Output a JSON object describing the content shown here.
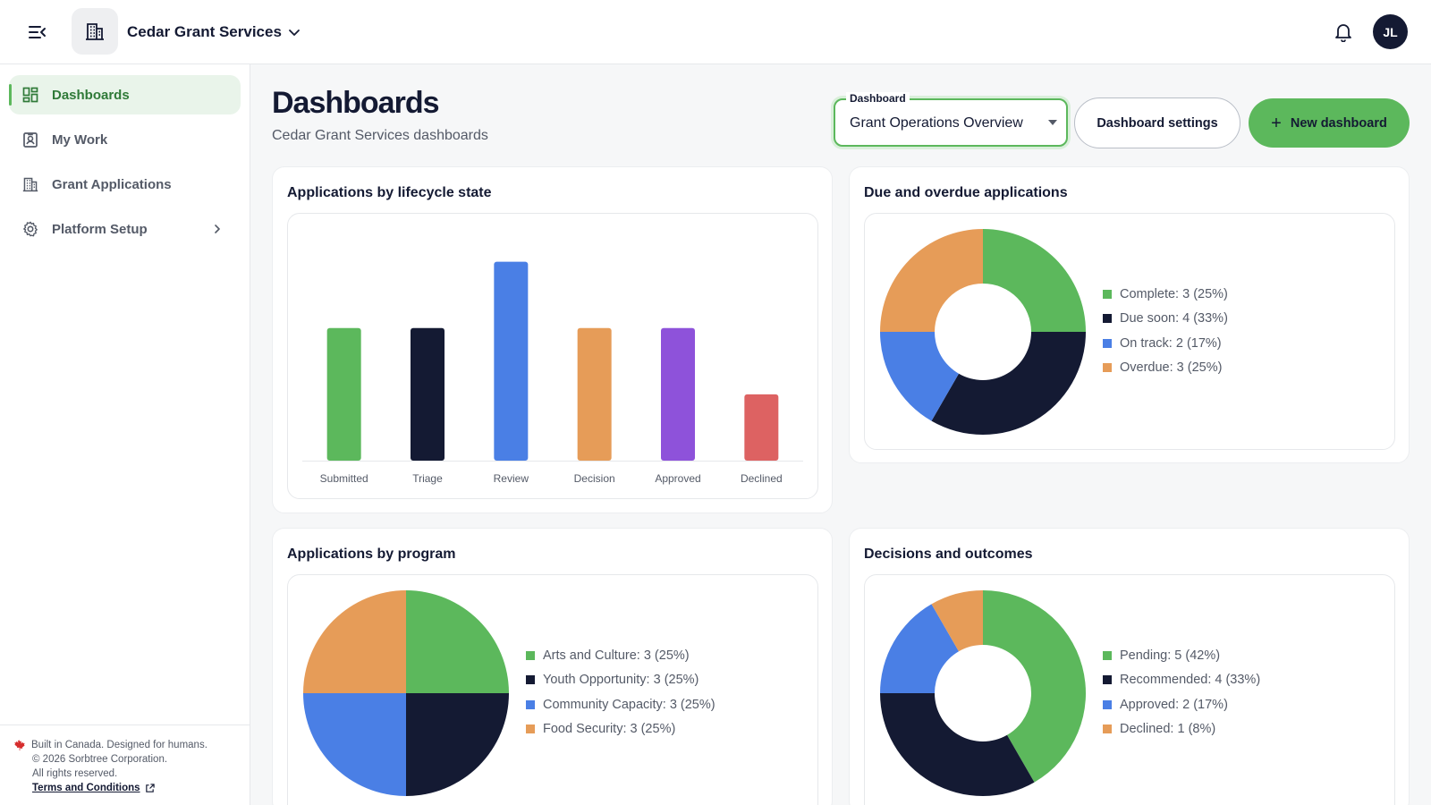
{
  "app": {
    "org_name": "Cedar Grant Services",
    "user_initials": "JL"
  },
  "sidebar": {
    "items": [
      {
        "label": "Dashboards",
        "icon": "dashboard-grid-icon",
        "active": true
      },
      {
        "label": "My Work",
        "icon": "id-badge-icon",
        "active": false
      },
      {
        "label": "Grant Applications",
        "icon": "building-icon",
        "active": false
      },
      {
        "label": "Platform Setup",
        "icon": "gear-icon",
        "active": false,
        "expandable": true
      }
    ],
    "footer": {
      "line1": "Built in Canada. Designed for humans.",
      "line2": "© 2026 Sorbtree Corporation.",
      "line3": "All rights reserved.",
      "terms": "Terms and Conditions"
    }
  },
  "page": {
    "title": "Dashboards",
    "subtitle": "Cedar Grant Services dashboards",
    "select_label": "Dashboard",
    "select_value": "Grant Operations Overview",
    "settings_button": "Dashboard settings",
    "new_button": "New dashboard"
  },
  "colors": {
    "green": "#5cb85c",
    "navy": "#141a33",
    "blue": "#4a7fe5",
    "orange": "#e69c58",
    "purple": "#8e52da",
    "red": "#dd6262"
  },
  "cards": {
    "lifecycle": {
      "title": "Applications by lifecycle state"
    },
    "due": {
      "title": "Due and overdue applications"
    },
    "program": {
      "title": "Applications by program"
    },
    "decisions": {
      "title": "Decisions and outcomes"
    }
  },
  "chart_data": [
    {
      "type": "bar",
      "title": "Applications by lifecycle state",
      "categories": [
        "Submitted",
        "Triage",
        "Review",
        "Decision",
        "Approved",
        "Declined"
      ],
      "values": [
        2,
        2,
        3,
        2,
        2,
        1
      ],
      "colors": [
        "#5cb85c",
        "#141a33",
        "#4a7fe5",
        "#e69c58",
        "#8e52da",
        "#dd6262"
      ],
      "ylim": [
        0,
        3.4
      ],
      "grid": false
    },
    {
      "type": "pie",
      "donut": true,
      "title": "Due and overdue applications",
      "labels": [
        "Complete",
        "Due soon",
        "On track",
        "Overdue"
      ],
      "values": [
        3,
        4,
        2,
        3
      ],
      "legend_text": [
        "Complete: 3 (25%)",
        "Due soon: 4 (33%)",
        "On track: 2 (17%)",
        "Overdue: 3 (25%)"
      ],
      "colors": [
        "#5cb85c",
        "#141a33",
        "#4a7fe5",
        "#e69c58"
      ],
      "legend": "right"
    },
    {
      "type": "pie",
      "donut": false,
      "title": "Applications by program",
      "labels": [
        "Arts and Culture",
        "Youth Opportunity",
        "Community Capacity",
        "Food Security"
      ],
      "values": [
        3,
        3,
        3,
        3
      ],
      "legend_text": [
        "Arts and Culture: 3 (25%)",
        "Youth Opportunity: 3 (25%)",
        "Community Capacity: 3 (25%)",
        "Food Security: 3 (25%)"
      ],
      "colors": [
        "#5cb85c",
        "#141a33",
        "#4a7fe5",
        "#e69c58"
      ],
      "legend": "right"
    },
    {
      "type": "pie",
      "donut": true,
      "title": "Decisions and outcomes",
      "labels": [
        "Pending",
        "Recommended",
        "Approved",
        "Declined"
      ],
      "values": [
        5,
        4,
        2,
        1
      ],
      "legend_text": [
        "Pending: 5 (42%)",
        "Recommended: 4 (33%)",
        "Approved: 2 (17%)",
        "Declined: 1 (8%)"
      ],
      "colors": [
        "#5cb85c",
        "#141a33",
        "#4a7fe5",
        "#e69c58"
      ],
      "legend": "right"
    }
  ]
}
